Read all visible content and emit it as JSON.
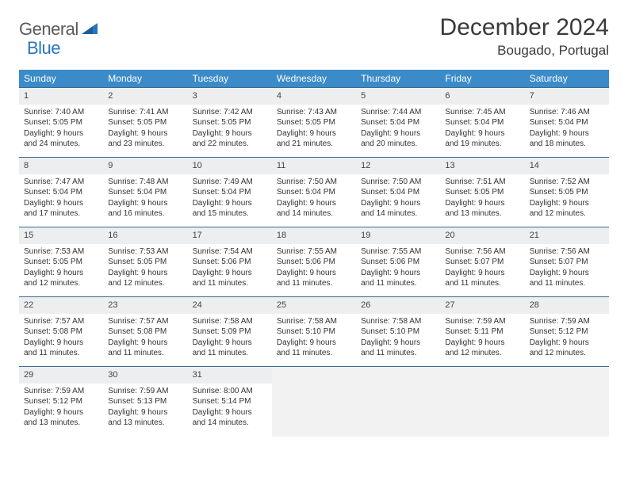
{
  "logo": {
    "part1": "General",
    "part2": "Blue"
  },
  "title": "December 2024",
  "location": "Bougado, Portugal",
  "colors": {
    "header_bg": "#3b8bc9",
    "row_border": "#3b6a95",
    "daynum_bg": "#eceeef",
    "empty_bg": "#f2f2f2",
    "logo_gray": "#5a5a5a",
    "logo_blue": "#2776bb"
  },
  "days_of_week": [
    "Sunday",
    "Monday",
    "Tuesday",
    "Wednesday",
    "Thursday",
    "Friday",
    "Saturday"
  ],
  "weeks": [
    [
      {
        "n": "1",
        "sunrise": "Sunrise: 7:40 AM",
        "sunset": "Sunset: 5:05 PM",
        "daylight1": "Daylight: 9 hours",
        "daylight2": "and 24 minutes."
      },
      {
        "n": "2",
        "sunrise": "Sunrise: 7:41 AM",
        "sunset": "Sunset: 5:05 PM",
        "daylight1": "Daylight: 9 hours",
        "daylight2": "and 23 minutes."
      },
      {
        "n": "3",
        "sunrise": "Sunrise: 7:42 AM",
        "sunset": "Sunset: 5:05 PM",
        "daylight1": "Daylight: 9 hours",
        "daylight2": "and 22 minutes."
      },
      {
        "n": "4",
        "sunrise": "Sunrise: 7:43 AM",
        "sunset": "Sunset: 5:05 PM",
        "daylight1": "Daylight: 9 hours",
        "daylight2": "and 21 minutes."
      },
      {
        "n": "5",
        "sunrise": "Sunrise: 7:44 AM",
        "sunset": "Sunset: 5:04 PM",
        "daylight1": "Daylight: 9 hours",
        "daylight2": "and 20 minutes."
      },
      {
        "n": "6",
        "sunrise": "Sunrise: 7:45 AM",
        "sunset": "Sunset: 5:04 PM",
        "daylight1": "Daylight: 9 hours",
        "daylight2": "and 19 minutes."
      },
      {
        "n": "7",
        "sunrise": "Sunrise: 7:46 AM",
        "sunset": "Sunset: 5:04 PM",
        "daylight1": "Daylight: 9 hours",
        "daylight2": "and 18 minutes."
      }
    ],
    [
      {
        "n": "8",
        "sunrise": "Sunrise: 7:47 AM",
        "sunset": "Sunset: 5:04 PM",
        "daylight1": "Daylight: 9 hours",
        "daylight2": "and 17 minutes."
      },
      {
        "n": "9",
        "sunrise": "Sunrise: 7:48 AM",
        "sunset": "Sunset: 5:04 PM",
        "daylight1": "Daylight: 9 hours",
        "daylight2": "and 16 minutes."
      },
      {
        "n": "10",
        "sunrise": "Sunrise: 7:49 AM",
        "sunset": "Sunset: 5:04 PM",
        "daylight1": "Daylight: 9 hours",
        "daylight2": "and 15 minutes."
      },
      {
        "n": "11",
        "sunrise": "Sunrise: 7:50 AM",
        "sunset": "Sunset: 5:04 PM",
        "daylight1": "Daylight: 9 hours",
        "daylight2": "and 14 minutes."
      },
      {
        "n": "12",
        "sunrise": "Sunrise: 7:50 AM",
        "sunset": "Sunset: 5:04 PM",
        "daylight1": "Daylight: 9 hours",
        "daylight2": "and 14 minutes."
      },
      {
        "n": "13",
        "sunrise": "Sunrise: 7:51 AM",
        "sunset": "Sunset: 5:05 PM",
        "daylight1": "Daylight: 9 hours",
        "daylight2": "and 13 minutes."
      },
      {
        "n": "14",
        "sunrise": "Sunrise: 7:52 AM",
        "sunset": "Sunset: 5:05 PM",
        "daylight1": "Daylight: 9 hours",
        "daylight2": "and 12 minutes."
      }
    ],
    [
      {
        "n": "15",
        "sunrise": "Sunrise: 7:53 AM",
        "sunset": "Sunset: 5:05 PM",
        "daylight1": "Daylight: 9 hours",
        "daylight2": "and 12 minutes."
      },
      {
        "n": "16",
        "sunrise": "Sunrise: 7:53 AM",
        "sunset": "Sunset: 5:05 PM",
        "daylight1": "Daylight: 9 hours",
        "daylight2": "and 12 minutes."
      },
      {
        "n": "17",
        "sunrise": "Sunrise: 7:54 AM",
        "sunset": "Sunset: 5:06 PM",
        "daylight1": "Daylight: 9 hours",
        "daylight2": "and 11 minutes."
      },
      {
        "n": "18",
        "sunrise": "Sunrise: 7:55 AM",
        "sunset": "Sunset: 5:06 PM",
        "daylight1": "Daylight: 9 hours",
        "daylight2": "and 11 minutes."
      },
      {
        "n": "19",
        "sunrise": "Sunrise: 7:55 AM",
        "sunset": "Sunset: 5:06 PM",
        "daylight1": "Daylight: 9 hours",
        "daylight2": "and 11 minutes."
      },
      {
        "n": "20",
        "sunrise": "Sunrise: 7:56 AM",
        "sunset": "Sunset: 5:07 PM",
        "daylight1": "Daylight: 9 hours",
        "daylight2": "and 11 minutes."
      },
      {
        "n": "21",
        "sunrise": "Sunrise: 7:56 AM",
        "sunset": "Sunset: 5:07 PM",
        "daylight1": "Daylight: 9 hours",
        "daylight2": "and 11 minutes."
      }
    ],
    [
      {
        "n": "22",
        "sunrise": "Sunrise: 7:57 AM",
        "sunset": "Sunset: 5:08 PM",
        "daylight1": "Daylight: 9 hours",
        "daylight2": "and 11 minutes."
      },
      {
        "n": "23",
        "sunrise": "Sunrise: 7:57 AM",
        "sunset": "Sunset: 5:08 PM",
        "daylight1": "Daylight: 9 hours",
        "daylight2": "and 11 minutes."
      },
      {
        "n": "24",
        "sunrise": "Sunrise: 7:58 AM",
        "sunset": "Sunset: 5:09 PM",
        "daylight1": "Daylight: 9 hours",
        "daylight2": "and 11 minutes."
      },
      {
        "n": "25",
        "sunrise": "Sunrise: 7:58 AM",
        "sunset": "Sunset: 5:10 PM",
        "daylight1": "Daylight: 9 hours",
        "daylight2": "and 11 minutes."
      },
      {
        "n": "26",
        "sunrise": "Sunrise: 7:58 AM",
        "sunset": "Sunset: 5:10 PM",
        "daylight1": "Daylight: 9 hours",
        "daylight2": "and 11 minutes."
      },
      {
        "n": "27",
        "sunrise": "Sunrise: 7:59 AM",
        "sunset": "Sunset: 5:11 PM",
        "daylight1": "Daylight: 9 hours",
        "daylight2": "and 12 minutes."
      },
      {
        "n": "28",
        "sunrise": "Sunrise: 7:59 AM",
        "sunset": "Sunset: 5:12 PM",
        "daylight1": "Daylight: 9 hours",
        "daylight2": "and 12 minutes."
      }
    ],
    [
      {
        "n": "29",
        "sunrise": "Sunrise: 7:59 AM",
        "sunset": "Sunset: 5:12 PM",
        "daylight1": "Daylight: 9 hours",
        "daylight2": "and 13 minutes."
      },
      {
        "n": "30",
        "sunrise": "Sunrise: 7:59 AM",
        "sunset": "Sunset: 5:13 PM",
        "daylight1": "Daylight: 9 hours",
        "daylight2": "and 13 minutes."
      },
      {
        "n": "31",
        "sunrise": "Sunrise: 8:00 AM",
        "sunset": "Sunset: 5:14 PM",
        "daylight1": "Daylight: 9 hours",
        "daylight2": "and 14 minutes."
      },
      null,
      null,
      null,
      null
    ]
  ]
}
